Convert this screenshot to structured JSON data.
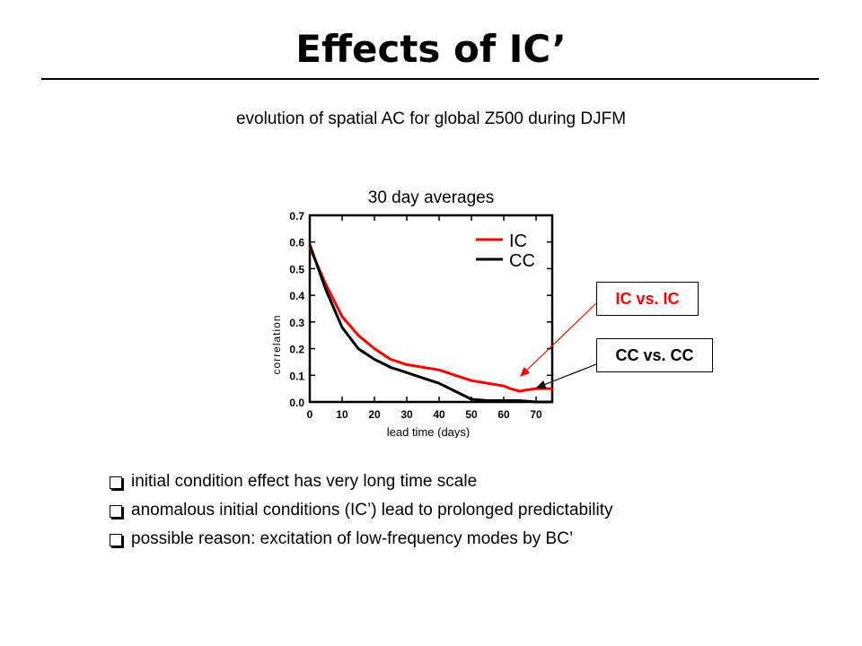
{
  "slide": {
    "title": "Effects of IC’",
    "subtitle": "evolution of spatial AC for global Z500 during DJFM",
    "callouts": {
      "ic": "IC vs. IC",
      "cc": "CC vs. CC"
    },
    "bullets": [
      "initial condition effect has very long time scale",
      "anomalous initial conditions (IC’) lead to prolonged predictability",
      "possible reason: excitation of low-frequency modes by BC’"
    ]
  },
  "chart_data": {
    "type": "line",
    "title": "30 day averages",
    "xlabel": "lead time (days)",
    "ylabel": "correlation",
    "xlim": [
      0,
      75
    ],
    "ylim": [
      0,
      0.7
    ],
    "xticks": [
      "0",
      "10",
      "20",
      "30",
      "40",
      "50",
      "60",
      "70"
    ],
    "yticks": [
      "0.0",
      "0.1",
      "0.2",
      "0.3",
      "0.4",
      "0.5",
      "0.6",
      "0.7"
    ],
    "legend_position": "top-right",
    "series": [
      {
        "name": "IC",
        "color": "#ff0000",
        "x": [
          0,
          5,
          10,
          15,
          20,
          25,
          30,
          35,
          40,
          45,
          50,
          55,
          60,
          62,
          65,
          67,
          70,
          75
        ],
        "y": [
          0.58,
          0.44,
          0.32,
          0.25,
          0.2,
          0.16,
          0.14,
          0.13,
          0.12,
          0.1,
          0.08,
          0.07,
          0.06,
          0.05,
          0.04,
          0.045,
          0.05,
          0.05
        ]
      },
      {
        "name": "CC",
        "color": "#000000",
        "x": [
          0,
          5,
          10,
          15,
          20,
          25,
          30,
          35,
          40,
          45,
          50,
          55,
          60,
          65,
          70,
          75
        ],
        "y": [
          0.59,
          0.42,
          0.28,
          0.2,
          0.16,
          0.13,
          0.11,
          0.09,
          0.07,
          0.04,
          0.01,
          0.005,
          0.005,
          0.005,
          0.0,
          0.0
        ]
      }
    ]
  }
}
